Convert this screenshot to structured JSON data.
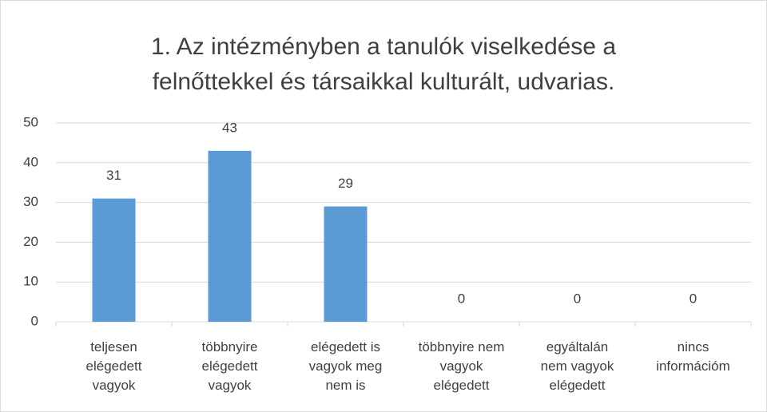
{
  "chart_data": {
    "type": "bar",
    "title": "1. Az intézményben a tanulók viselkedése a felnőttekkel és társaikkal kulturált, udvarias.",
    "categories": [
      "teljesen elégedett vagyok",
      "többnyire elégedett vagyok",
      "elégedett is vagyok meg nem is",
      "többnyire nem vagyok elégedett",
      "egyáltalán nem vagyok elégedett",
      "nincs információm"
    ],
    "values": [
      31,
      43,
      29,
      0,
      0,
      0
    ],
    "color": "#5b9bd5",
    "ylim": [
      0,
      50
    ],
    "yticks": [
      0,
      10,
      20,
      30,
      40,
      50
    ],
    "grid": true
  }
}
